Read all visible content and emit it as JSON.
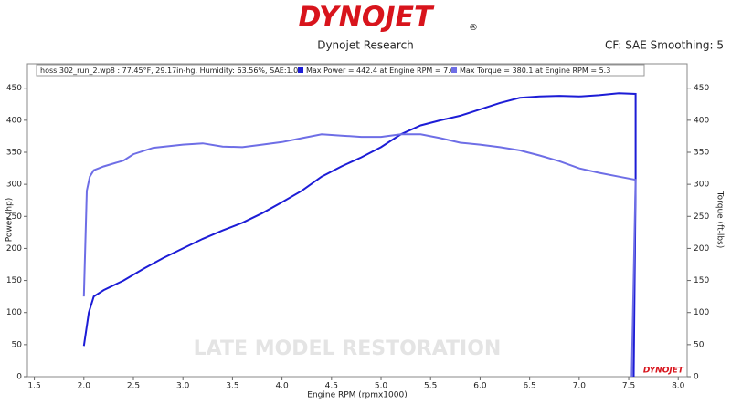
{
  "header": {
    "logo": "DYNOJET",
    "logo_mark": "®",
    "company": "Dynojet Research",
    "settings": "CF: SAE Smoothing: 5"
  },
  "chart_data": {
    "type": "line",
    "legend": {
      "run": "hoss 302_run_2.wp8  : 77.45°F, 29.17in-hg, Humidity: 63.56%, SAE:1.03",
      "max_power": "Max Power = 442.4 at Engine RPM = 7.6",
      "max_torque": "Max Torque = 380.1 at Engine RPM = 5.3"
    },
    "xlabel": "Engine RPM (rpmx1000)",
    "ylabel": "Power (hp)",
    "y2label": "Torque (ft-lbs)",
    "watermark": "LATE MODEL RESTORATION",
    "corner_logo": "DYNOJET",
    "xlim": [
      1.43,
      8.09
    ],
    "xticks": [
      1.5,
      {
        "value": 2,
        "label": "2.0"
      },
      2.5,
      {
        "value": 3,
        "label": "3.0"
      },
      3.5,
      {
        "value": 4,
        "label": "4.0"
      },
      4.5,
      {
        "value": 5,
        "label": "5.0"
      },
      5.5,
      {
        "value": 6,
        "label": "6.0"
      },
      6.5,
      {
        "value": 7,
        "label": "7.0"
      },
      7.5,
      {
        "value": 8,
        "label": "8.0"
      }
    ],
    "ylim": [
      0,
      488
    ],
    "yticks": [
      0,
      50,
      100,
      150,
      200,
      250,
      300,
      350,
      400,
      450
    ],
    "y2lim": [
      0,
      488
    ],
    "y2ticks": [
      0,
      50,
      100,
      150,
      200,
      250,
      300,
      350,
      400,
      450
    ],
    "series": [
      {
        "name": "Power",
        "color": "#1c1cd6",
        "x": [
          2.0,
          2.05,
          2.1,
          2.2,
          2.4,
          2.6,
          2.8,
          3.0,
          3.2,
          3.4,
          3.6,
          3.8,
          4.0,
          4.2,
          4.4,
          4.6,
          4.8,
          5.0,
          5.2,
          5.4,
          5.6,
          5.8,
          6.0,
          6.2,
          6.4,
          6.6,
          6.8,
          7.0,
          7.2,
          7.4,
          7.57,
          7.57,
          7.55
        ],
        "values": [
          48,
          100,
          125,
          135,
          150,
          168,
          185,
          200,
          215,
          228,
          240,
          255,
          272,
          290,
          312,
          328,
          342,
          358,
          378,
          392,
          400,
          407,
          417,
          427,
          435,
          437,
          438,
          437,
          439,
          442,
          441,
          300,
          0
        ]
      },
      {
        "name": "Torque",
        "color": "#6e6ee6",
        "axis": "y2",
        "x": [
          2.0,
          2.03,
          2.06,
          2.1,
          2.2,
          2.4,
          2.5,
          2.7,
          3.0,
          3.2,
          3.4,
          3.6,
          3.8,
          4.0,
          4.2,
          4.4,
          4.6,
          4.8,
          5.0,
          5.2,
          5.4,
          5.6,
          5.8,
          6.0,
          6.2,
          6.4,
          6.6,
          6.8,
          7.0,
          7.2,
          7.4,
          7.57,
          7.53
        ],
        "values": [
          125,
          290,
          312,
          322,
          328,
          337,
          347,
          357,
          362,
          364,
          359,
          358,
          362,
          366,
          372,
          378,
          376,
          374,
          374,
          378,
          378,
          372,
          365,
          362,
          358,
          353,
          345,
          336,
          325,
          318,
          312,
          307,
          0
        ]
      }
    ]
  }
}
